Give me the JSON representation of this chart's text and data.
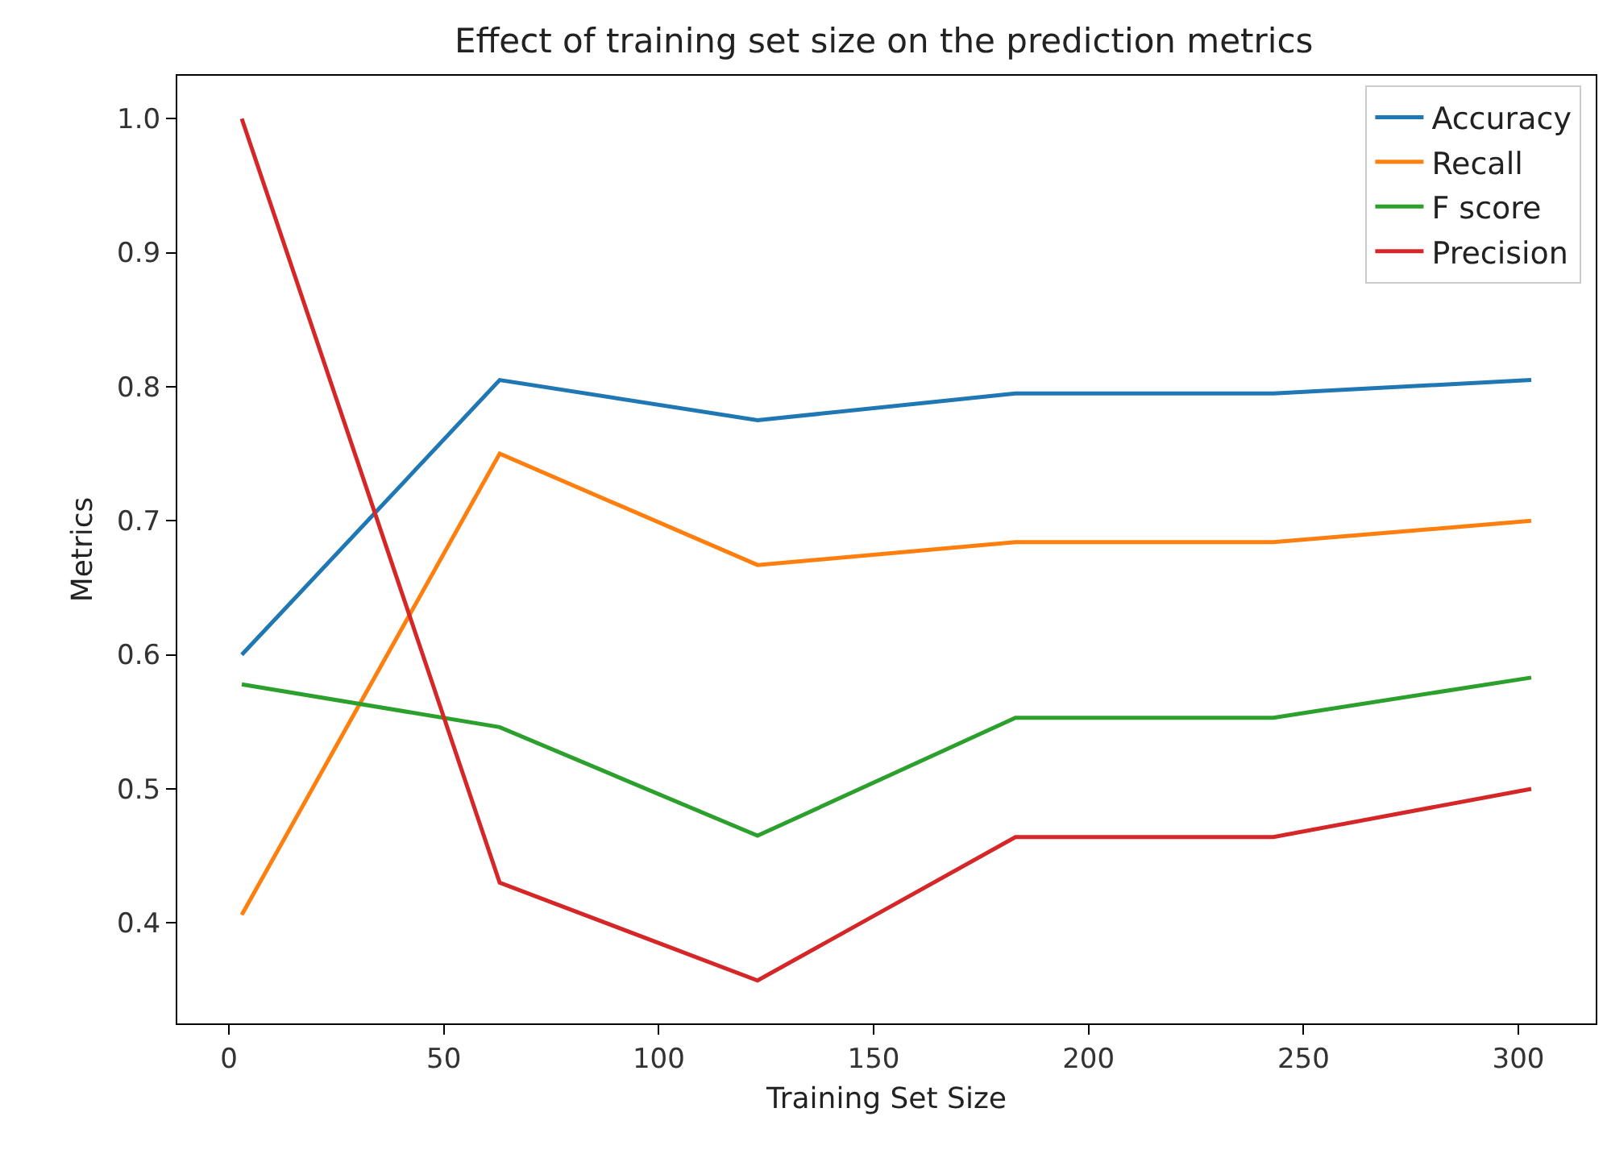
{
  "chart_data": {
    "type": "line",
    "title": "Effect of training set size on the prediction metrics",
    "xlabel": "Training Set Size",
    "ylabel": "Metrics",
    "x": [
      3,
      63,
      123,
      183,
      243,
      303
    ],
    "series": [
      {
        "name": "Accuracy",
        "color": "#1f77b4",
        "values": [
          0.6,
          0.805,
          0.775,
          0.795,
          0.795,
          0.805
        ]
      },
      {
        "name": "Recall",
        "color": "#ff7f0e",
        "values": [
          0.406,
          0.75,
          0.667,
          0.684,
          0.684,
          0.7
        ]
      },
      {
        "name": "F score",
        "color": "#2ca02c",
        "values": [
          0.578,
          0.546,
          0.465,
          0.553,
          0.553,
          0.583
        ]
      },
      {
        "name": "Precision",
        "color": "#d62728",
        "values": [
          1.0,
          0.43,
          0.357,
          0.464,
          0.464,
          0.5
        ]
      }
    ],
    "xlim": [
      -12,
      318
    ],
    "xticks": [
      0,
      50,
      100,
      150,
      200,
      250,
      300
    ],
    "ylim": [
      0.325,
      1.032
    ],
    "yticks": [
      0.4,
      0.5,
      0.6,
      0.7,
      0.8,
      0.9,
      {
        "value": 1,
        "label": "1.0"
      }
    ],
    "grid": false,
    "legend": "top right",
    "marker": "none",
    "line_style": "solid"
  }
}
